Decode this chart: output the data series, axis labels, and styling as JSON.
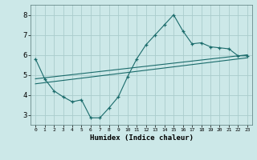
{
  "xlabel": "Humidex (Indice chaleur)",
  "bg_color": "#cce8e8",
  "grid_color": "#aacccc",
  "line_color": "#1a6b6b",
  "xlim": [
    -0.5,
    23.5
  ],
  "ylim": [
    2.5,
    8.5
  ],
  "xticks": [
    0,
    1,
    2,
    3,
    4,
    5,
    6,
    7,
    8,
    9,
    10,
    11,
    12,
    13,
    14,
    15,
    16,
    17,
    18,
    19,
    20,
    21,
    22,
    23
  ],
  "yticks": [
    3,
    4,
    5,
    6,
    7,
    8
  ],
  "line1_x": [
    0,
    1,
    2,
    3,
    4,
    5,
    6,
    7,
    8,
    9,
    10,
    11,
    12,
    13,
    14,
    15,
    16,
    17,
    18,
    19,
    20,
    21,
    22,
    23
  ],
  "line1_y": [
    5.8,
    4.8,
    4.2,
    3.9,
    3.65,
    3.75,
    2.85,
    2.85,
    3.35,
    3.9,
    4.9,
    5.8,
    6.5,
    7.0,
    7.5,
    8.0,
    7.2,
    6.55,
    6.6,
    6.4,
    6.35,
    6.3,
    5.95,
    5.95
  ],
  "line2_x": [
    0,
    23
  ],
  "line2_y": [
    4.8,
    6.0
  ],
  "line3_x": [
    0,
    23
  ],
  "line3_y": [
    4.55,
    5.85
  ]
}
